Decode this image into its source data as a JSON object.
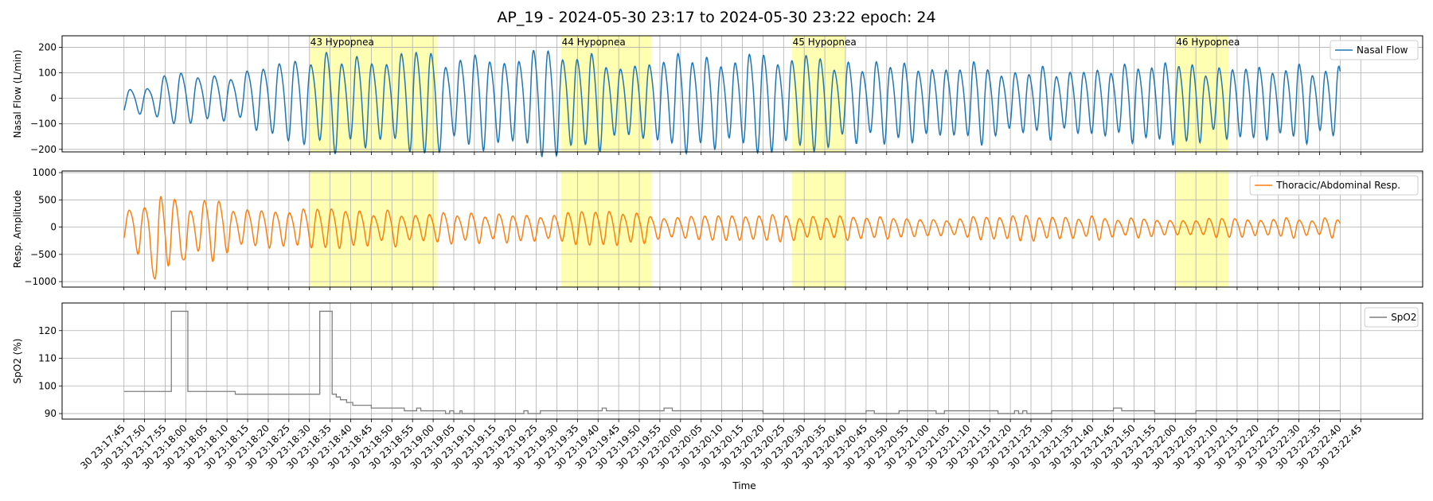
{
  "title": "AP_19 - 2024-05-30 23:17 to 2024-05-30 23:22 epoch: 24",
  "x_axis": {
    "label": "Time",
    "start": "2024-05-30 23:17:45",
    "end": "2024-05-30 23:22:40",
    "tick_step_seconds": 5,
    "ticks": [
      "30 23:17:45",
      "30 23:17:50",
      "30 23:17:55",
      "30 23:18:00",
      "30 23:18:05",
      "30 23:18:10",
      "30 23:18:15",
      "30 23:18:20",
      "30 23:18:25",
      "30 23:18:30",
      "30 23:18:35",
      "30 23:18:40",
      "30 23:18:45",
      "30 23:18:50",
      "30 23:18:55",
      "30 23:19:00",
      "30 23:19:05",
      "30 23:19:10",
      "30 23:19:15",
      "30 23:19:20",
      "30 23:19:25",
      "30 23:19:30",
      "30 23:19:35",
      "30 23:19:40",
      "30 23:19:45",
      "30 23:19:50",
      "30 23:19:55",
      "30 23:20:00",
      "30 23:20:05",
      "30 23:20:10",
      "30 23:20:15",
      "30 23:20:20",
      "30 23:20:25",
      "30 23:20:30",
      "30 23:20:35",
      "30 23:20:40",
      "30 23:20:45",
      "30 23:20:50",
      "30 23:20:55",
      "30 23:21:00",
      "30 23:21:05",
      "30 23:21:10",
      "30 23:21:15",
      "30 23:21:20",
      "30 23:21:25",
      "30 23:21:30",
      "30 23:21:35",
      "30 23:21:40",
      "30 23:21:45",
      "30 23:21:50",
      "30 23:21:55",
      "30 23:22:00",
      "30 23:22:05",
      "30 23:22:10",
      "30 23:22:15",
      "30 23:22:20",
      "30 23:22:25",
      "30 23:22:30",
      "30 23:22:35",
      "30 23:22:40",
      "30 23:22:45"
    ]
  },
  "events": [
    {
      "label": "43 Hypopnea",
      "start": "2024-05-30 23:18:30",
      "end": "2024-05-30 23:19:01"
    },
    {
      "label": "44 Hypopnea",
      "start": "2024-05-30 23:19:31",
      "end": "2024-05-30 23:19:53"
    },
    {
      "label": "45 Hypopnea",
      "start": "2024-05-30 23:20:27",
      "end": "2024-05-30 23:20:40"
    },
    {
      "label": "46 Hypopnea",
      "start": "2024-05-30 23:22:00",
      "end": "2024-05-30 23:22:13"
    }
  ],
  "chart_data": [
    {
      "type": "line",
      "series": [
        {
          "name": "Nasal Flow",
          "color": "#1f77b4"
        }
      ],
      "ylabel": "Nasal Flow (L/min)",
      "ylim": [
        -210,
        245
      ],
      "yticks": [
        -200,
        -100,
        0,
        100,
        200
      ],
      "ytick_labels": [
        "−200",
        "−100",
        "0",
        "100",
        "200"
      ],
      "legend": "upper right",
      "grid": true,
      "breathing": {
        "period_seconds": [
          [
            0,
            4.2
          ],
          [
            45,
            3.8
          ],
          [
            60,
            3.6
          ],
          [
            240,
            3.3
          ],
          [
            295,
            3.2
          ]
        ],
        "amplitude": [
          [
            0,
            40
          ],
          [
            6,
            50
          ],
          [
            10,
            90
          ],
          [
            18,
            70
          ],
          [
            30,
            90
          ],
          [
            40,
            130
          ],
          [
            50,
            170
          ],
          [
            75,
            160
          ],
          [
            110,
            170
          ],
          [
            120,
            150
          ],
          [
            160,
            160
          ],
          [
            175,
            150
          ],
          [
            200,
            130
          ],
          [
            240,
            130
          ],
          [
            260,
            135
          ],
          [
            295,
            120
          ]
        ],
        "offset": [
          [
            0,
            -10
          ],
          [
            20,
            10
          ],
          [
            45,
            0
          ],
          [
            295,
            -10
          ]
        ],
        "start_value": -45
      }
    },
    {
      "type": "line",
      "series": [
        {
          "name": "Thoracic/Abdominal Resp.",
          "color": "#ff7f0e"
        }
      ],
      "ylabel": "Resp. Amplitude",
      "ylim": [
        -1100,
        1030
      ],
      "yticks": [
        -1000,
        -500,
        0,
        500,
        1000
      ],
      "ytick_labels": [
        "−1000",
        "−500",
        "0",
        "500",
        "1000"
      ],
      "legend": "upper right",
      "grid": true,
      "breathing": {
        "period_seconds": [
          [
            0,
            3.8
          ],
          [
            30,
            3.4
          ],
          [
            60,
            3.4
          ],
          [
            295,
            3.1
          ]
        ],
        "amplitude": [
          [
            0,
            250
          ],
          [
            5,
            500
          ],
          [
            9,
            700
          ],
          [
            15,
            350
          ],
          [
            22,
            500
          ],
          [
            26,
            350
          ],
          [
            33,
            250
          ],
          [
            42,
            350
          ],
          [
            50,
            300
          ],
          [
            90,
            220
          ],
          [
            110,
            260
          ],
          [
            140,
            200
          ],
          [
            175,
            200
          ],
          [
            200,
            150
          ],
          [
            220,
            200
          ],
          [
            260,
            150
          ],
          [
            295,
            150
          ]
        ],
        "offset": [
          [
            0,
            0
          ],
          [
            295,
            0
          ]
        ],
        "start_value": -200,
        "dips": [
          {
            "t": 7.5,
            "value": -950
          },
          {
            "t": 14.5,
            "value": -600
          }
        ]
      }
    },
    {
      "type": "line",
      "series": [
        {
          "name": "SpO2",
          "color": "#7f7f7f"
        }
      ],
      "ylabel": "SpO2 (%)",
      "ylim": [
        88,
        130
      ],
      "yticks": [
        90,
        100,
        110,
        120
      ],
      "ytick_labels": [
        "90",
        "100",
        "110",
        "120"
      ],
      "legend": "upper right",
      "grid": true,
      "steps": [
        [
          0,
          98
        ],
        [
          11.5,
          127
        ],
        [
          15.5,
          98
        ],
        [
          27,
          97
        ],
        [
          47.5,
          127
        ],
        [
          50.5,
          97
        ],
        [
          51.5,
          96
        ],
        [
          52.5,
          95
        ],
        [
          54,
          94
        ],
        [
          55.5,
          93
        ],
        [
          60,
          92
        ],
        [
          68,
          91
        ],
        [
          71,
          92
        ],
        [
          72,
          91
        ],
        [
          78,
          90
        ],
        [
          79,
          91
        ],
        [
          80,
          90
        ],
        [
          81.5,
          91
        ],
        [
          82,
          90
        ],
        [
          97,
          91
        ],
        [
          98,
          90
        ],
        [
          101,
          91
        ],
        [
          116,
          92
        ],
        [
          117,
          91
        ],
        [
          131,
          92
        ],
        [
          133,
          91
        ],
        [
          155,
          90
        ],
        [
          180,
          91
        ],
        [
          182,
          90
        ],
        [
          188,
          91
        ],
        [
          197,
          90
        ],
        [
          199,
          91
        ],
        [
          212,
          90
        ],
        [
          216,
          91
        ],
        [
          217,
          90
        ],
        [
          218,
          91
        ],
        [
          219,
          90
        ],
        [
          225,
          91
        ],
        [
          240,
          92
        ],
        [
          242,
          91
        ],
        [
          250,
          90
        ],
        [
          260,
          91
        ],
        [
          295,
          91
        ]
      ]
    }
  ]
}
